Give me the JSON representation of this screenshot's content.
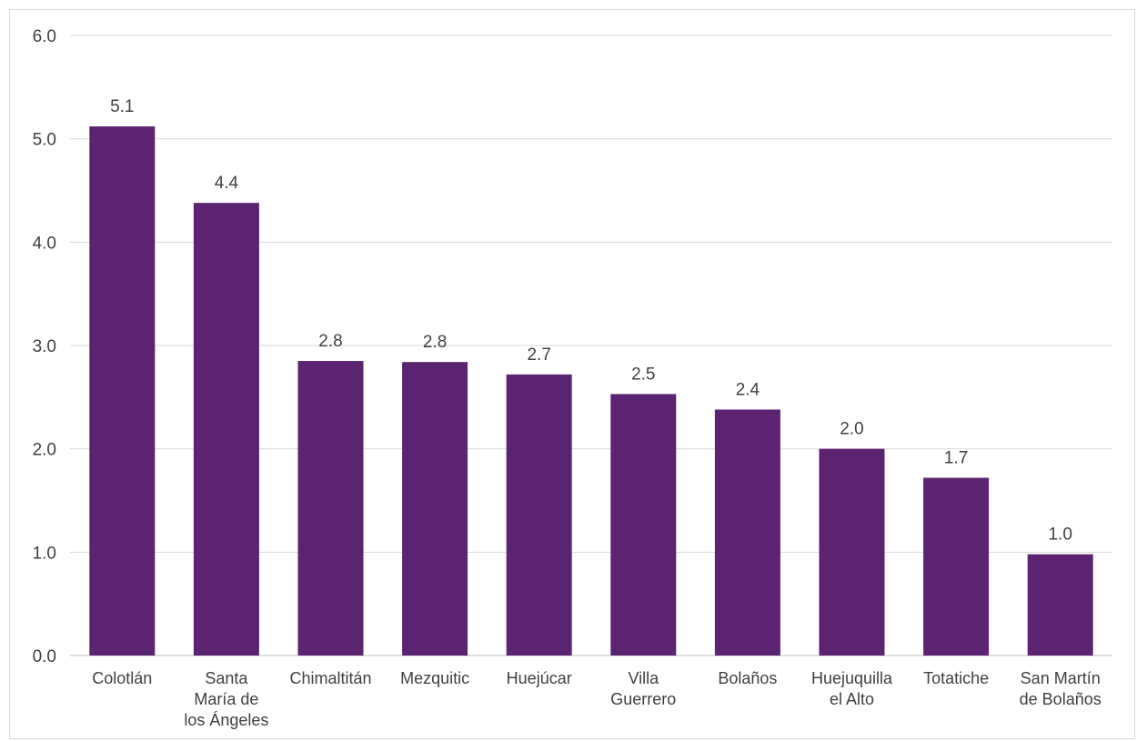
{
  "chart_data": {
    "type": "bar",
    "title": "",
    "xlabel": "",
    "ylabel": "",
    "ylim": [
      0,
      6
    ],
    "yticks": [
      "0.0",
      "1.0",
      "2.0",
      "3.0",
      "4.0",
      "5.0",
      "6.0"
    ],
    "grid": true,
    "bar_color": "#5b2370",
    "categories": [
      [
        "Colotlán"
      ],
      [
        "Santa",
        "María de",
        "los Ángeles"
      ],
      [
        "Chimaltitán"
      ],
      [
        "Mezquitic"
      ],
      [
        "Huejúcar"
      ],
      [
        "Villa",
        "Guerrero"
      ],
      [
        "Bolaños"
      ],
      [
        "Huejuquilla",
        "el Alto"
      ],
      [
        "Totatiche"
      ],
      [
        "San Martín",
        "de Bolaños"
      ]
    ],
    "values": [
      5.12,
      4.38,
      2.85,
      2.84,
      2.72,
      2.53,
      2.38,
      2.0,
      1.72,
      0.98
    ],
    "data_labels": [
      "5.1",
      "4.4",
      "2.8",
      "2.8",
      "2.7",
      "2.5",
      "2.4",
      "2.0",
      "1.7",
      "1.0"
    ]
  }
}
